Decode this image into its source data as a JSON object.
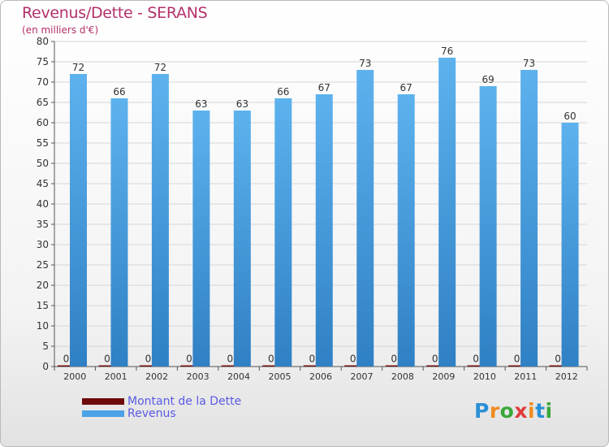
{
  "title": "Revenus/Dette - SERANS",
  "subtitle": "(en milliers d'€)",
  "logo": {
    "text": "Proxiti",
    "letter_colors": [
      "#2a8fd6",
      "#f08c1e",
      "#3aa83a",
      "#e03c3c",
      "#f08c1e",
      "#2a8fd6",
      "#3aa83a"
    ]
  },
  "chart_data": {
    "type": "bar",
    "title": "Revenus/Dette - SERANS",
    "subtitle": "(en milliers d'€)",
    "xlabel": "",
    "ylabel": "",
    "ylim": [
      0,
      80
    ],
    "ytick_step": 5,
    "grid": true,
    "categories": [
      "2000",
      "2001",
      "2002",
      "2003",
      "2004",
      "2005",
      "2006",
      "2007",
      "2008",
      "2009",
      "2010",
      "2011",
      "2012"
    ],
    "series": [
      {
        "name": "Montant de la Dette",
        "color": "#6e0a0a",
        "values": [
          0,
          0,
          0,
          0,
          0,
          0,
          0,
          0,
          0,
          0,
          0,
          0,
          0
        ]
      },
      {
        "name": "Revenus",
        "color": "#4aa3e6",
        "values": [
          72,
          66,
          72,
          63,
          63,
          66,
          67,
          73,
          67,
          76,
          69,
          73,
          60
        ]
      }
    ],
    "legend_position": "bottom-left"
  }
}
